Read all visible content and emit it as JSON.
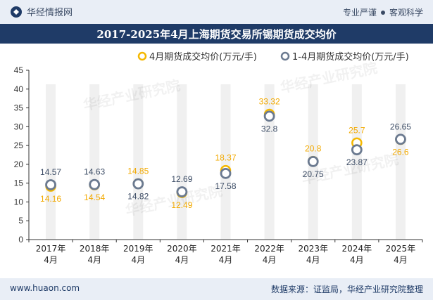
{
  "header": {
    "brand": "华经情报网",
    "tag_1": "专业严谨",
    "tag_2": "客观科学"
  },
  "title": "2017-2025年4月上海期货交易所锡期货成交均价",
  "footer": {
    "site": "www.huaon.com",
    "source": "数据来源：证监局，华经产业研究院整理"
  },
  "watermark": "华经产业研究院",
  "colors": {
    "header_bg": "#e9eef6",
    "title_bg": "#1f3b67",
    "series_1": "#f5b800",
    "series_2": "#6b7a90",
    "label_1": "#f2a900",
    "label_2": "#3d4d66",
    "band": "#e4e4e4"
  },
  "chart_data": {
    "type": "scatter",
    "categories": [
      "2017年\n4月",
      "2018年\n4月",
      "2019年\n4月",
      "2020年\n4月",
      "2021年\n4月",
      "2022年\n4月",
      "2023年\n4月",
      "2024年\n4月",
      "2025年\n4月"
    ],
    "series": [
      {
        "name": "4月期货成交均价(万元/手)",
        "values": [
          14.16,
          14.54,
          14.85,
          12.49,
          18.37,
          33.32,
          20.8,
          25.7,
          26.6
        ]
      },
      {
        "name": "1-4月期货成交均价(万元/手)",
        "values": [
          14.57,
          14.63,
          14.82,
          12.69,
          17.58,
          32.8,
          20.75,
          23.87,
          26.65
        ]
      }
    ],
    "ylim": [
      0,
      45
    ],
    "yticks": [
      0,
      5,
      10,
      15,
      20,
      25,
      30,
      35,
      40,
      45
    ],
    "legend": "top-center",
    "grid": false
  }
}
